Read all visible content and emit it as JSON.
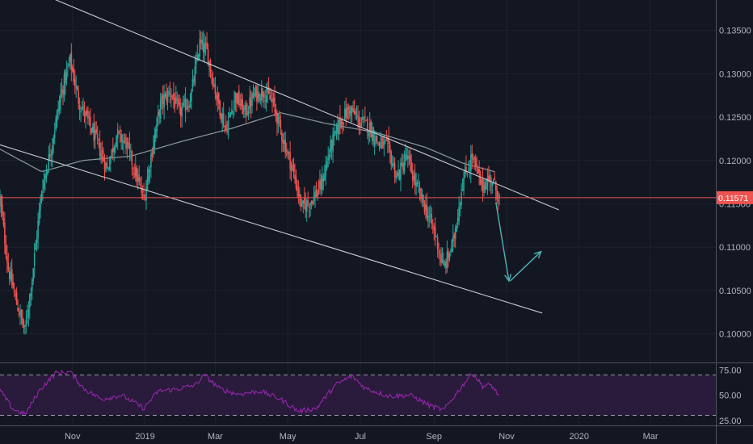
{
  "colors": {
    "background": "#131722",
    "grid": "#1e222d",
    "text": "#b2b5be",
    "up": "#26a69a",
    "down": "#ef5350",
    "moving_average": "#8f9aa0",
    "trendline": "#c8cbd2",
    "projection_arrow": "#4fb3b3",
    "current_price": "#ef5350",
    "rsi_line": "#9c27b0",
    "rsi_band_fill": "#2a1b3d",
    "rsi_band_border": "#9598a1",
    "pane_divider": "#50535e"
  },
  "chart_data": [
    {
      "type": "candlestick",
      "title": "",
      "x_axis": {
        "labels": [
          {
            "date": "2018-11-01",
            "text": "Nov"
          },
          {
            "date": "2019-01-01",
            "text": "2019"
          },
          {
            "date": "2019-03-01",
            "text": "Mar"
          },
          {
            "date": "2019-05-01",
            "text": "May"
          },
          {
            "date": "2019-07-01",
            "text": "Jul"
          },
          {
            "date": "2019-09-01",
            "text": "Sep"
          },
          {
            "date": "2019-11-01",
            "text": "Nov"
          },
          {
            "date": "2020-01-01",
            "text": "2020"
          },
          {
            "date": "2020-03-01",
            "text": "Mar"
          }
        ],
        "range": [
          "2018-09-01",
          "2020-04-25"
        ]
      },
      "y_axis": {
        "range": [
          0.0968,
          0.1385
        ],
        "ticks": [
          {
            "value": 0.1,
            "text": "0.10000"
          },
          {
            "value": 0.105,
            "text": "0.10500"
          },
          {
            "value": 0.11,
            "text": "0.11000"
          },
          {
            "value": 0.115,
            "text": "0.11500"
          },
          {
            "value": 0.12,
            "text": "0.12000"
          },
          {
            "value": 0.125,
            "text": "0.12500"
          },
          {
            "value": 0.13,
            "text": "0.13000"
          },
          {
            "value": 0.135,
            "text": "0.13500"
          }
        ]
      },
      "grid": true,
      "price_path": [
        [
          "2018-09-01",
          0.1155
        ],
        [
          "2018-09-08",
          0.1075
        ],
        [
          "2018-09-15",
          0.1035
        ],
        [
          "2018-09-22",
          0.1003
        ],
        [
          "2018-09-28",
          0.1065
        ],
        [
          "2018-10-06",
          0.1165
        ],
        [
          "2018-10-14",
          0.1215
        ],
        [
          "2018-10-22",
          0.1275
        ],
        [
          "2018-10-30",
          0.1315
        ],
        [
          "2018-11-06",
          0.127
        ],
        [
          "2018-11-14",
          0.1245
        ],
        [
          "2018-11-22",
          0.122
        ],
        [
          "2018-11-30",
          0.119
        ],
        [
          "2018-12-08",
          0.123
        ],
        [
          "2018-12-16",
          0.122
        ],
        [
          "2018-12-24",
          0.1185
        ],
        [
          "2018-12-31",
          0.1155
        ],
        [
          "2019-01-06",
          0.1205
        ],
        [
          "2019-01-14",
          0.1265
        ],
        [
          "2019-01-22",
          0.128
        ],
        [
          "2019-01-30",
          0.1255
        ],
        [
          "2019-02-08",
          0.127
        ],
        [
          "2019-02-16",
          0.1335
        ],
        [
          "2019-02-22",
          0.1325
        ],
        [
          "2019-03-02",
          0.1275
        ],
        [
          "2019-03-10",
          0.1235
        ],
        [
          "2019-03-18",
          0.1275
        ],
        [
          "2019-03-26",
          0.1255
        ],
        [
          "2019-04-03",
          0.1275
        ],
        [
          "2019-04-11",
          0.128
        ],
        [
          "2019-04-19",
          0.1265
        ],
        [
          "2019-04-27",
          0.1225
        ],
        [
          "2019-05-05",
          0.119
        ],
        [
          "2019-05-13",
          0.1145
        ],
        [
          "2019-05-21",
          0.1155
        ],
        [
          "2019-05-29",
          0.117
        ],
        [
          "2019-06-06",
          0.1215
        ],
        [
          "2019-06-14",
          0.1245
        ],
        [
          "2019-06-22",
          0.126
        ],
        [
          "2019-06-30",
          0.1245
        ],
        [
          "2019-07-08",
          0.124
        ],
        [
          "2019-07-16",
          0.122
        ],
        [
          "2019-07-24",
          0.1215
        ],
        [
          "2019-08-01",
          0.118
        ],
        [
          "2019-08-09",
          0.1205
        ],
        [
          "2019-08-17",
          0.117
        ],
        [
          "2019-08-25",
          0.1145
        ],
        [
          "2019-09-02",
          0.1115
        ],
        [
          "2019-09-09",
          0.1075
        ],
        [
          "2019-09-17",
          0.1105
        ],
        [
          "2019-09-25",
          0.1175
        ],
        [
          "2019-10-03",
          0.1205
        ],
        [
          "2019-10-11",
          0.117
        ],
        [
          "2019-10-19",
          0.118
        ],
        [
          "2019-10-26",
          0.1157
        ]
      ],
      "moving_average": [
        [
          "2018-09-01",
          0.1213
        ],
        [
          "2018-10-06",
          0.1187
        ],
        [
          "2018-11-10",
          0.12
        ],
        [
          "2018-12-20",
          0.1205
        ],
        [
          "2019-02-01",
          0.1222
        ],
        [
          "2019-03-15",
          0.1237
        ],
        [
          "2019-04-25",
          0.1255
        ],
        [
          "2019-06-01",
          0.1243
        ],
        [
          "2019-07-15",
          0.1232
        ],
        [
          "2019-08-25",
          0.1215
        ],
        [
          "2019-09-25",
          0.1197
        ],
        [
          "2019-10-22",
          0.1187
        ]
      ],
      "trendlines": [
        {
          "name": "upper-channel",
          "from": [
            "2018-09-01",
            0.1412
          ],
          "to": [
            "2019-12-15",
            0.1143
          ]
        },
        {
          "name": "lower-channel",
          "from": [
            "2018-09-01",
            0.1218
          ],
          "to": [
            "2019-12-01",
            0.1024
          ]
        }
      ],
      "arrows": [
        {
          "from": [
            "2019-10-23",
            0.1152
          ],
          "to": [
            "2019-11-03",
            0.1061
          ]
        },
        {
          "from": [
            "2019-11-04",
            0.1061
          ],
          "to": [
            "2019-11-30",
            0.1095
          ]
        }
      ],
      "current_price": {
        "value": 0.11571,
        "label": "0.11571"
      }
    },
    {
      "type": "line",
      "title": "",
      "y_axis": {
        "range": [
          20,
          80
        ],
        "ticks": [
          {
            "value": 75,
            "text": "75.00"
          },
          {
            "value": 50,
            "text": "50.00"
          },
          {
            "value": 25,
            "text": "25.00"
          }
        ]
      },
      "bands": {
        "upper": 70,
        "lower": 30
      },
      "series": [
        {
          "values_path": [
            [
              "2018-09-01",
              55
            ],
            [
              "2018-09-12",
              36
            ],
            [
              "2018-09-22",
              31
            ],
            [
              "2018-10-05",
              56
            ],
            [
              "2018-10-18",
              72
            ],
            [
              "2018-10-30",
              73
            ],
            [
              "2018-11-10",
              57
            ],
            [
              "2018-11-25",
              46
            ],
            [
              "2018-12-12",
              50
            ],
            [
              "2018-12-31",
              37
            ],
            [
              "2019-01-12",
              54
            ],
            [
              "2019-01-28",
              56
            ],
            [
              "2019-02-12",
              60
            ],
            [
              "2019-02-20",
              70
            ],
            [
              "2019-03-05",
              56
            ],
            [
              "2019-03-20",
              51
            ],
            [
              "2019-04-08",
              54
            ],
            [
              "2019-04-25",
              46
            ],
            [
              "2019-05-10",
              34
            ],
            [
              "2019-05-25",
              37
            ],
            [
              "2019-06-10",
              60
            ],
            [
              "2019-06-24",
              69
            ],
            [
              "2019-07-05",
              57
            ],
            [
              "2019-07-25",
              49
            ],
            [
              "2019-08-12",
              50
            ],
            [
              "2019-08-28",
              40
            ],
            [
              "2019-09-09",
              35
            ],
            [
              "2019-09-22",
              55
            ],
            [
              "2019-10-03",
              72
            ],
            [
              "2019-10-12",
              59
            ],
            [
              "2019-10-19",
              60
            ],
            [
              "2019-10-26",
              49
            ]
          ]
        }
      ]
    }
  ]
}
